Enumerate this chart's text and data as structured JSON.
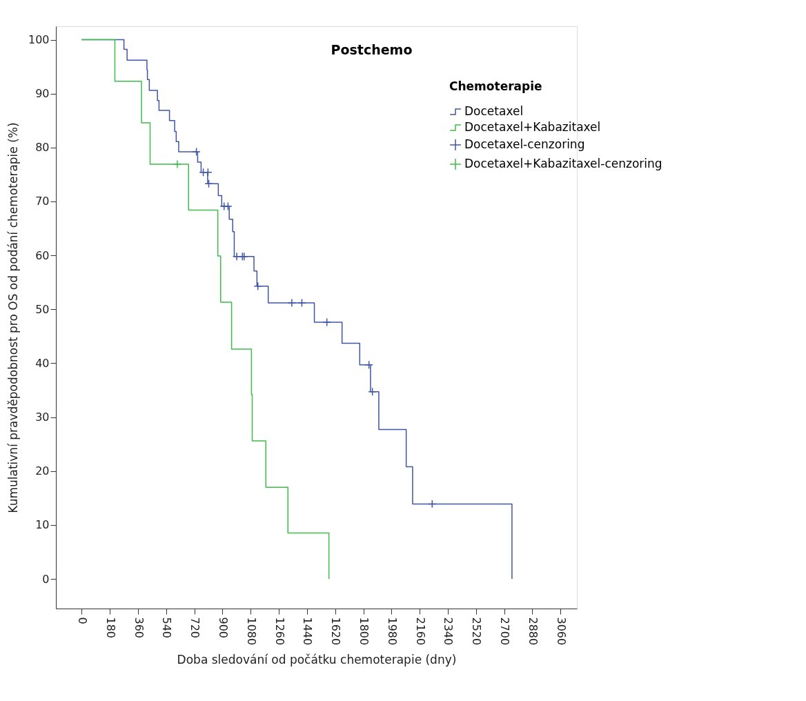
{
  "chart_data": {
    "type": "step",
    "title": "Postchemo",
    "xlabel": "Doba sledování od počátku chemoterapie (dny)",
    "ylabel": "Kumulativní pravděpodobnost pro OS od podání chemoterapie (%)",
    "legend_title": "Chemoterapie",
    "legend": "top right",
    "grid": false,
    "xlim": [
      -165,
      3165
    ],
    "xticks": [
      0,
      180,
      360,
      540,
      720,
      900,
      1080,
      1260,
      1440,
      1620,
      1800,
      1980,
      2160,
      2340,
      2520,
      2700,
      2880,
      3060
    ],
    "ylim": [
      -5.5,
      102.5
    ],
    "yticks": [
      0,
      10,
      20,
      30,
      40,
      50,
      60,
      70,
      80,
      90,
      100
    ],
    "series": [
      {
        "name": "Docetaxel",
        "color": "#3f55a8",
        "x": [
          0,
          270,
          290,
          417,
          420,
          432,
          484,
          494,
          561,
          594,
          604,
          620,
          741,
          763,
          805,
          873,
          895,
          943,
          965,
          975,
          1101,
          1120,
          1192,
          1487,
          1664,
          1777,
          1846,
          1899,
          2074,
          2115,
          2750
        ],
        "values": [
          100,
          98.2,
          96.2,
          94.4,
          92.6,
          90.6,
          88.7,
          86.9,
          85.0,
          83.0,
          81.1,
          79.2,
          77.3,
          75.4,
          73.3,
          71.1,
          69.1,
          66.7,
          64.4,
          59.8,
          57.1,
          54.3,
          51.2,
          47.6,
          43.7,
          39.7,
          34.7,
          27.7,
          20.8,
          13.9,
          0
        ]
      },
      {
        "name": "Docetaxel+Kabazitaxel",
        "color": "#3cbd4a",
        "x": [
          0,
          212,
          382,
          437,
          683,
          870,
          888,
          958,
          1085,
          1090,
          1177,
          1318,
          1580
        ],
        "values": [
          100,
          92.3,
          84.6,
          76.9,
          68.4,
          59.9,
          51.3,
          42.6,
          34.2,
          25.6,
          17.0,
          8.5,
          0
        ]
      },
      {
        "name": "Docetaxel-cenzoring",
        "type": "scatter",
        "marker": "cross",
        "color": "#3f55a8",
        "x": [
          733,
          777,
          807,
          812,
          910,
          935,
          991,
          1027,
          1038,
          1126,
          1343,
          1407,
          1567,
          1836,
          1858,
          2240
        ],
        "values": [
          79.2,
          75.4,
          75.4,
          73.3,
          69.1,
          69.1,
          59.8,
          59.8,
          59.8,
          54.3,
          51.2,
          51.2,
          47.6,
          39.7,
          34.7,
          13.9
        ]
      },
      {
        "name": "Docetaxel+Kabazitaxel-cenzoring",
        "type": "scatter",
        "marker": "cross",
        "color": "#3cbd4a",
        "x": [
          611
        ],
        "values": [
          76.9
        ]
      }
    ]
  }
}
